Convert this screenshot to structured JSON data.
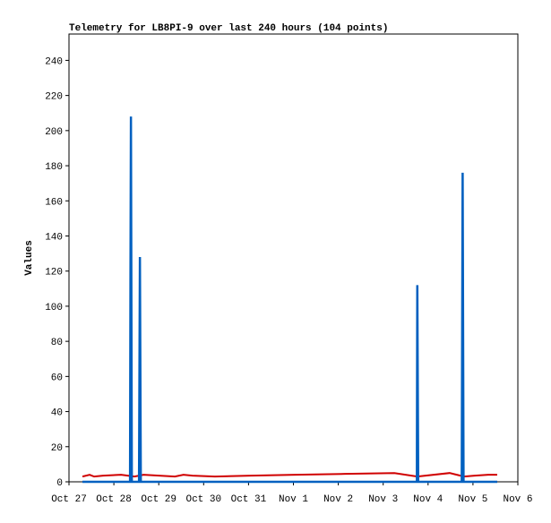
{
  "chart_data": {
    "type": "line",
    "title": "Telemetry for LB8PI-9 over last 240 hours (104 points)",
    "y_label": "Values",
    "xlim": [
      0,
      10
    ],
    "xticks": [
      {
        "value": 0,
        "label": "Oct 27"
      },
      {
        "value": 1,
        "label": "Oct 28"
      },
      {
        "value": 2,
        "label": "Oct 29"
      },
      {
        "value": 3,
        "label": "Oct 30"
      },
      {
        "value": 4,
        "label": "Oct 31"
      },
      {
        "value": 5,
        "label": "Nov 1"
      },
      {
        "value": 6,
        "label": "Nov 2"
      },
      {
        "value": 7,
        "label": "Nov 3"
      },
      {
        "value": 8,
        "label": "Nov 4"
      },
      {
        "value": 9,
        "label": "Nov 5"
      },
      {
        "value": 10,
        "label": "Nov 6"
      }
    ],
    "ylim": [
      0,
      255
    ],
    "yticks": [
      0,
      20,
      40,
      60,
      80,
      100,
      120,
      140,
      160,
      180,
      200,
      220,
      240
    ],
    "grid": false,
    "series": [
      {
        "color": "#d00000",
        "width": 2,
        "x": [
          0.3,
          0.46,
          0.56,
          0.76,
          1.16,
          1.46,
          1.66,
          2.36,
          2.55,
          2.75,
          3.25,
          4.05,
          5.05,
          6.15,
          7.25,
          7.76,
          8.48,
          8.8,
          9.04,
          9.34,
          9.54
        ],
        "values": [
          3,
          4,
          3,
          3.5,
          4,
          3,
          4,
          3,
          4,
          3.5,
          3,
          3.5,
          4,
          4.5,
          5,
          3,
          5,
          3,
          3.5,
          4,
          4
        ]
      },
      {
        "color": "#000000",
        "width": 2,
        "x": [
          0.3,
          9.54
        ],
        "values": [
          0,
          0
        ]
      },
      {
        "color": "#0060c0",
        "width": 2.5,
        "x": [
          0.3,
          1.36,
          1.37,
          1.38,
          1.4,
          1.56,
          1.57,
          1.58,
          1.6,
          7.75,
          7.76,
          7.78,
          8.75,
          8.76,
          8.77,
          8.79,
          9.54
        ],
        "values": [
          0,
          0,
          120,
          208,
          0,
          0,
          64,
          128,
          0,
          0,
          112,
          0,
          0,
          88,
          176,
          0,
          0
        ]
      }
    ]
  }
}
